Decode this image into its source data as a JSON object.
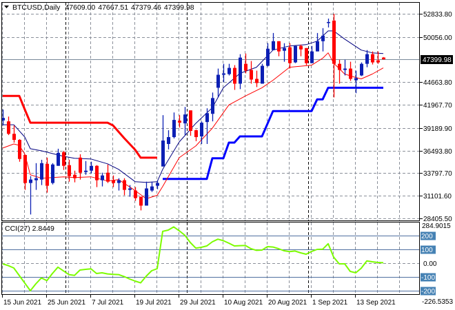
{
  "chart_data": {
    "type": "candlestick",
    "header": {
      "symbol": "BTCUSD,Daily",
      "open": "47609.00",
      "high": "47667.51",
      "low": "47379.46",
      "close": "47399.98"
    },
    "ylim": [
      28159,
      54232
    ],
    "y_ticks": [
      {
        "label": "52833.80",
        "value": 52833.8
      },
      {
        "label": "50056.00",
        "value": 50056.0
      },
      {
        "label": "44663.80",
        "value": 44663.8
      },
      {
        "label": "41967.70",
        "value": 41967.7
      },
      {
        "label": "39189.90",
        "value": 39189.9
      },
      {
        "label": "36493.80",
        "value": 36493.8
      },
      {
        "label": "33797.70",
        "value": 33797.7
      },
      {
        "label": "31101.60",
        "value": 31101.6
      },
      {
        "label": "28405.50",
        "value": 28405.5
      }
    ],
    "current_price": {
      "label": "47399.98",
      "value": 47399.98
    },
    "x_ticks": [
      {
        "label": "15 Jun 2021",
        "bar": 0
      },
      {
        "label": "25 Jun 2021",
        "bar": 8
      },
      {
        "label": "7 Jul 2021",
        "bar": 16
      },
      {
        "label": "19 Jul 2021",
        "bar": 24
      },
      {
        "label": "29 Jul 2021",
        "bar": 32
      },
      {
        "label": "10 Aug 2021",
        "bar": 40
      },
      {
        "label": "20 Aug 2021",
        "bar": 48
      },
      {
        "label": "1 Sep 2021",
        "bar": 56
      },
      {
        "label": "13 Sep 2021",
        "bar": 64
      }
    ],
    "period_separators": [
      12,
      34,
      56
    ],
    "candles_ohlc": [
      [
        40100,
        41400,
        39500,
        40400
      ],
      [
        39990,
        40560,
        38350,
        38500
      ],
      [
        38500,
        39500,
        37450,
        37780
      ],
      [
        37780,
        37860,
        35170,
        35500
      ],
      [
        35980,
        36000,
        31810,
        32630
      ],
      [
        32630,
        33450,
        28870,
        33040
      ],
      [
        32960,
        35000,
        31810,
        33200
      ],
      [
        33040,
        35400,
        32380,
        35000
      ],
      [
        34920,
        35660,
        31480,
        32300
      ],
      [
        32630,
        35000,
        32460,
        34840
      ],
      [
        34680,
        36720,
        34680,
        36230
      ],
      [
        36310,
        36470,
        34190,
        34680
      ],
      [
        34760,
        35410,
        32790,
        33450
      ],
      [
        33610,
        34100,
        32710,
        33200
      ],
      [
        35660,
        36060,
        33040,
        33860
      ],
      [
        33940,
        35250,
        33610,
        34100
      ],
      [
        34100,
        35170,
        33770,
        34680
      ],
      [
        34680,
        34760,
        32140,
        32960
      ],
      [
        32960,
        33860,
        32220,
        33530
      ],
      [
        33860,
        34840,
        32630,
        32790
      ],
      [
        32960,
        33530,
        32140,
        32630
      ],
      [
        32630,
        33200,
        31730,
        32960
      ],
      [
        32960,
        33200,
        31160,
        31810
      ],
      [
        31810,
        32380,
        30990,
        31980
      ],
      [
        31730,
        32140,
        30500,
        30830
      ],
      [
        31000,
        31000,
        29360,
        29930
      ],
      [
        29930,
        32790,
        29930,
        31980
      ],
      [
        31730,
        32790,
        31560,
        32220
      ],
      [
        32300,
        32960,
        31890,
        32630
      ],
      [
        34600,
        40730,
        34600,
        37700
      ],
      [
        37290,
        38930,
        36640,
        38110
      ],
      [
        38110,
        41050,
        37950,
        40160
      ],
      [
        40070,
        40730,
        39250,
        39830
      ],
      [
        39750,
        41710,
        38360,
        40810
      ],
      [
        41300,
        41300,
        38270,
        38850
      ],
      [
        38930,
        39010,
        37620,
        38110
      ],
      [
        38190,
        39990,
        37290,
        39830
      ],
      [
        39910,
        41550,
        37290,
        40970
      ],
      [
        40890,
        43430,
        39990,
        42770
      ],
      [
        44000,
        46290,
        42850,
        45550
      ],
      [
        45550,
        46860,
        44660,
        45720
      ],
      [
        45630,
        46860,
        45470,
        46370
      ],
      [
        46370,
        46700,
        43750,
        44490
      ],
      [
        44490,
        48010,
        43840,
        47600
      ],
      [
        46860,
        48090,
        45720,
        46040
      ],
      [
        46120,
        47190,
        44490,
        44980
      ],
      [
        45060,
        46040,
        44080,
        44570
      ],
      [
        44490,
        46860,
        44490,
        46620
      ],
      [
        46620,
        49320,
        46540,
        48660
      ],
      [
        48500,
        50540,
        48500,
        49560
      ],
      [
        49560,
        49560,
        47760,
        48340
      ],
      [
        48420,
        49320,
        47110,
        48740
      ],
      [
        48830,
        49320,
        46290,
        46940
      ],
      [
        47030,
        48990,
        46940,
        48990
      ],
      [
        48990,
        49150,
        47760,
        48580
      ],
      [
        48740,
        48740,
        46700,
        46940
      ],
      [
        46940,
        48990,
        46940,
        48340
      ],
      [
        48340,
        50540,
        48340,
        49560
      ],
      [
        49560,
        51120,
        48340,
        50220
      ],
      [
        51770,
        52260,
        51200,
        51850
      ],
      [
        52020,
        52834,
        42850,
        46860
      ],
      [
        46860,
        47350,
        44490,
        46130
      ],
      [
        46130,
        47350,
        45470,
        46290
      ],
      [
        46290,
        47110,
        44820,
        45060
      ],
      [
        44900,
        46040,
        43350,
        45150
      ],
      [
        45470,
        47030,
        45390,
        46860
      ],
      [
        46860,
        48500,
        46450,
        48010
      ],
      [
        48010,
        48340,
        46780,
        47030
      ],
      [
        47270,
        48340,
        46860,
        47030
      ],
      [
        47609,
        47668,
        47379,
        47400
      ]
    ],
    "overlays": {
      "ma_blue": [
        [
          0,
          39582
        ],
        [
          2,
          39582
        ],
        [
          4,
          38110
        ],
        [
          5,
          36719
        ],
        [
          7,
          36474
        ],
        [
          11,
          35820
        ],
        [
          13,
          35574
        ],
        [
          16,
          35492
        ],
        [
          19,
          34920
        ],
        [
          21,
          34265
        ],
        [
          24,
          32793
        ],
        [
          26,
          32711
        ],
        [
          28,
          32793
        ],
        [
          29,
          34265
        ],
        [
          32,
          37537
        ],
        [
          35,
          39746
        ],
        [
          38,
          41627
        ],
        [
          40,
          43999
        ],
        [
          43,
          45717
        ],
        [
          46,
          46454
        ],
        [
          49,
          48499
        ],
        [
          52,
          48989
        ],
        [
          55,
          49153
        ],
        [
          57,
          49562
        ],
        [
          59,
          50789
        ],
        [
          60,
          50789
        ],
        [
          62,
          49807
        ],
        [
          65,
          48499
        ],
        [
          67,
          48171
        ],
        [
          69,
          48090
        ]
      ],
      "ma_red": [
        [
          0,
          36801
        ],
        [
          2,
          37292
        ],
        [
          3,
          37128
        ],
        [
          4,
          36065
        ],
        [
          5,
          33611
        ],
        [
          7,
          33202
        ],
        [
          11,
          33366
        ],
        [
          13,
          33284
        ],
        [
          16,
          33366
        ],
        [
          19,
          32875
        ],
        [
          21,
          33038
        ],
        [
          24,
          31730
        ],
        [
          26,
          30748
        ],
        [
          28,
          31157
        ],
        [
          29,
          32220
        ],
        [
          32,
          35656
        ],
        [
          35,
          37047
        ],
        [
          38,
          39173
        ],
        [
          41,
          41954
        ],
        [
          44,
          43018
        ],
        [
          47,
          43999
        ],
        [
          49,
          44899
        ],
        [
          52,
          46454
        ],
        [
          56,
          46699
        ],
        [
          58,
          47517
        ],
        [
          59,
          48171
        ],
        [
          60,
          46944
        ],
        [
          62,
          45635
        ],
        [
          64,
          45226
        ],
        [
          65,
          45063
        ],
        [
          67,
          45635
        ],
        [
          69,
          46372
        ]
      ],
      "channel_upper": [
        [
          0,
          43018
        ],
        [
          3,
          43018
        ],
        [
          4,
          41400
        ],
        [
          5,
          39828
        ],
        [
          19,
          39828
        ],
        [
          20,
          39500
        ],
        [
          22,
          38000
        ],
        [
          24,
          36600
        ],
        [
          25,
          35656
        ],
        [
          28,
          35656
        ]
      ],
      "channel_lower": [
        [
          29,
          33120
        ],
        [
          37,
          33120
        ],
        [
          38,
          35575
        ],
        [
          40,
          35575
        ],
        [
          41,
          37456
        ],
        [
          42,
          37456
        ],
        [
          43,
          38192
        ],
        [
          47,
          38192
        ],
        [
          49,
          41218
        ],
        [
          56,
          41218
        ],
        [
          57,
          42610
        ],
        [
          58,
          42610
        ],
        [
          59,
          43998
        ],
        [
          69,
          43998
        ]
      ]
    },
    "cci": {
      "label": "CCI(27) 2.8449",
      "max_label": "284.9015",
      "min_label": "-226.5353",
      "levels": [
        {
          "label": "200",
          "value": 200
        },
        {
          "label": "100",
          "value": 100
        },
        {
          "label": "0.00",
          "value": 0
        },
        {
          "label": "-100",
          "value": -100
        },
        {
          "label": "-200",
          "value": -200
        }
      ],
      "values": [
        -5,
        -18,
        -35,
        -90,
        -145,
        -200,
        -150,
        -107,
        -127,
        -75,
        -29,
        -56,
        -83,
        -89,
        -50,
        -45,
        -41,
        -75,
        -70,
        -78,
        -81,
        -83,
        -97,
        -115,
        -130,
        -143,
        -95,
        -55,
        -40,
        231,
        240,
        263,
        235,
        203,
        150,
        109,
        115,
        125,
        155,
        174,
        163,
        145,
        125,
        127,
        128,
        105,
        93,
        95,
        120,
        117,
        105,
        90,
        84,
        88,
        75,
        65,
        85,
        100,
        101,
        141,
        44,
        -5,
        -5,
        -60,
        -70,
        -37,
        16,
        10,
        5,
        2.8449
      ]
    },
    "colors": {
      "bull": "#0c1fb4",
      "bear": "#ff0000",
      "ma_blue": "#000080",
      "ma_red": "#ff0000",
      "channel_upper": "#ff0000",
      "channel_lower": "#0000ff",
      "cci_line": "#7cfc00",
      "level_box": "#4682b4"
    }
  }
}
